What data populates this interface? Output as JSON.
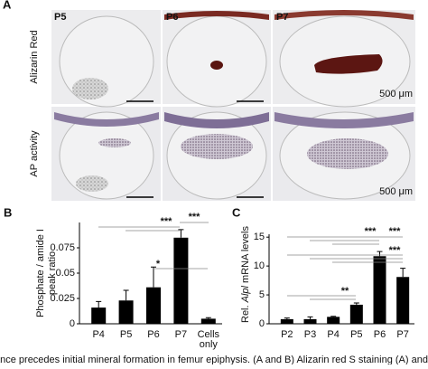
{
  "panel_a": {
    "label": "A",
    "columns": [
      "P5",
      "P6",
      "P7"
    ],
    "rows": [
      "Alizarin Red",
      "AP activity"
    ],
    "scale_bar": "500 μm"
  },
  "chart_data": [
    {
      "type": "bar",
      "panel_label": "B",
      "ylabel_lines": [
        "Phosphate / amide I",
        "peak ratio"
      ],
      "categories": [
        "P4",
        "P5",
        "P6",
        "P7",
        "Cells only"
      ],
      "values": [
        0.016,
        0.023,
        0.036,
        0.085,
        0.005
      ],
      "errors": [
        0.006,
        0.01,
        0.02,
        0.008,
        0.001
      ],
      "color": "#000000",
      "ylim": [
        0,
        0.1
      ],
      "yticks": [
        0,
        0.025,
        0.05,
        0.075
      ],
      "annotations": [
        "***",
        "***",
        "*"
      ]
    },
    {
      "type": "bar",
      "panel_label": "C",
      "ylabel_parts": [
        "Rel. ",
        "Alpl",
        " mRNA levels"
      ],
      "categories": [
        "P2",
        "P3",
        "P4",
        "P5",
        "P6",
        "P7"
      ],
      "values": [
        0.8,
        0.8,
        1.2,
        3.3,
        11.7,
        8.1
      ],
      "errors": [
        0.2,
        0.4,
        0.1,
        0.3,
        0.8,
        1.5
      ],
      "color": "#000000",
      "ylim": [
        0,
        15.5
      ],
      "yticks": [
        0,
        5,
        10,
        15
      ],
      "annotations": [
        "**",
        "***",
        "***",
        "***"
      ]
    }
  ],
  "caption": "ance precedes initial mineral formation in femur epiphysis. (A and B) Alizarin red S staining (A) and alkali"
}
